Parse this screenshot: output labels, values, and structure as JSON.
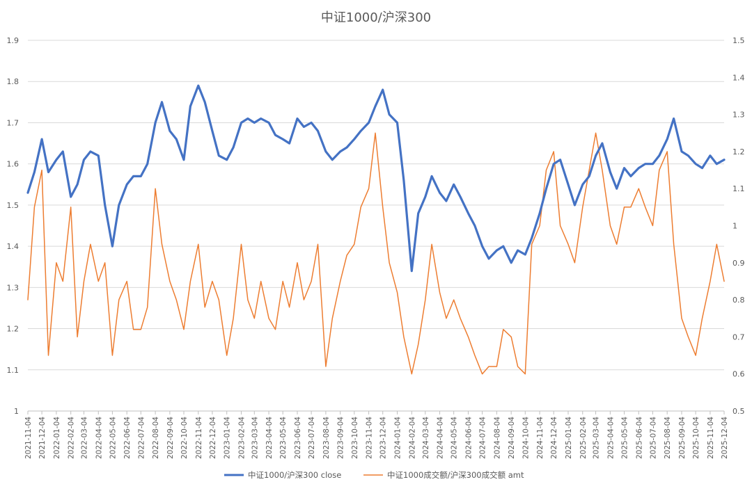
{
  "chart_data": {
    "type": "line",
    "title": "中证1000/沪深300",
    "y_left": {
      "min": 1.0,
      "max": 1.9,
      "ticks": [
        "1",
        "1.1",
        "1.2",
        "1.3",
        "1.4",
        "1.5",
        "1.6",
        "1.7",
        "1.8",
        "1.9"
      ]
    },
    "y_right": {
      "min": 0.5,
      "max": 1.5,
      "ticks": [
        "0.5",
        "0.6",
        "0.7",
        "0.8",
        "0.9",
        "1",
        "1.1",
        "1.2",
        "1.3",
        "1.4",
        "1.5"
      ]
    },
    "x_ticks": [
      "2021-11-04",
      "2021-12-04",
      "2022-01-04",
      "2022-02-04",
      "2022-03-04",
      "2022-04-04",
      "2022-05-04",
      "2022-06-04",
      "2022-07-04",
      "2022-08-04",
      "2022-09-04",
      "2022-10-04",
      "2022-11-04",
      "2022-12-04",
      "2023-01-04",
      "2023-02-04",
      "2023-03-04",
      "2023-04-04",
      "2023-05-04",
      "2023-06-04",
      "2023-07-04",
      "2023-08-04",
      "2023-09-04",
      "2023-10-04",
      "2023-11-04",
      "2023-12-04",
      "2024-01-04",
      "2024-02-04",
      "2024-03-04",
      "2024-04-04",
      "2024-05-04",
      "2024-06-04",
      "2024-07-04",
      "2024-08-04",
      "2024-09-04",
      "2024-10-04",
      "2024-11-04",
      "2024-12-04",
      "2025-01-04",
      "2025-02-04",
      "2025-03-04",
      "2025-04-04",
      "2025-05-04",
      "2025-06-04",
      "2025-07-04",
      "2025-08-04",
      "2025-09-04",
      "2025-10-04",
      "2025-11-04",
      "2025-12-04"
    ],
    "grid": true,
    "legend_position": "bottom",
    "series": [
      {
        "name": "中证1000/沪深300 close",
        "axis": "left",
        "color": "#4472C4",
        "x": [
          "2021-11-04",
          "2021-11-18",
          "2021-12-04",
          "2021-12-18",
          "2022-01-04",
          "2022-01-18",
          "2022-02-04",
          "2022-02-18",
          "2022-03-04",
          "2022-03-18",
          "2022-04-04",
          "2022-04-18",
          "2022-05-04",
          "2022-05-18",
          "2022-06-04",
          "2022-06-18",
          "2022-07-04",
          "2022-07-18",
          "2022-08-04",
          "2022-08-18",
          "2022-09-04",
          "2022-09-18",
          "2022-10-04",
          "2022-10-18",
          "2022-11-04",
          "2022-11-18",
          "2022-12-04",
          "2022-12-18",
          "2023-01-04",
          "2023-01-18",
          "2023-02-04",
          "2023-02-18",
          "2023-03-04",
          "2023-03-18",
          "2023-04-04",
          "2023-04-18",
          "2023-05-04",
          "2023-05-18",
          "2023-06-04",
          "2023-06-18",
          "2023-07-04",
          "2023-07-18",
          "2023-08-04",
          "2023-08-18",
          "2023-09-04",
          "2023-09-18",
          "2023-10-04",
          "2023-10-18",
          "2023-11-04",
          "2023-11-18",
          "2023-12-04",
          "2023-12-18",
          "2024-01-04",
          "2024-01-18",
          "2024-02-04",
          "2024-02-18",
          "2024-03-04",
          "2024-03-18",
          "2024-04-04",
          "2024-04-18",
          "2024-05-04",
          "2024-05-18",
          "2024-06-04",
          "2024-06-18",
          "2024-07-04",
          "2024-07-18",
          "2024-08-04",
          "2024-08-18",
          "2024-09-04",
          "2024-09-18",
          "2024-10-04",
          "2024-10-18",
          "2024-11-04",
          "2024-11-18",
          "2024-12-04",
          "2024-12-18",
          "2025-01-04",
          "2025-01-18",
          "2025-02-04",
          "2025-02-18",
          "2025-03-04",
          "2025-03-18",
          "2025-04-04",
          "2025-04-18",
          "2025-05-04",
          "2025-05-18",
          "2025-06-04",
          "2025-06-18",
          "2025-07-04",
          "2025-07-18",
          "2025-08-04",
          "2025-08-18",
          "2025-09-04",
          "2025-09-18",
          "2025-10-04",
          "2025-10-18",
          "2025-11-04",
          "2025-11-18",
          "2025-12-04"
        ],
        "values": [
          1.53,
          1.58,
          1.66,
          1.58,
          1.61,
          1.63,
          1.52,
          1.55,
          1.61,
          1.63,
          1.62,
          1.5,
          1.4,
          1.5,
          1.55,
          1.57,
          1.57,
          1.6,
          1.7,
          1.75,
          1.68,
          1.66,
          1.61,
          1.74,
          1.79,
          1.75,
          1.68,
          1.62,
          1.61,
          1.64,
          1.7,
          1.71,
          1.7,
          1.71,
          1.7,
          1.67,
          1.66,
          1.65,
          1.71,
          1.69,
          1.7,
          1.68,
          1.63,
          1.61,
          1.63,
          1.64,
          1.66,
          1.68,
          1.7,
          1.74,
          1.78,
          1.72,
          1.7,
          1.56,
          1.34,
          1.48,
          1.52,
          1.57,
          1.53,
          1.51,
          1.55,
          1.52,
          1.48,
          1.45,
          1.4,
          1.37,
          1.39,
          1.4,
          1.36,
          1.39,
          1.38,
          1.42,
          1.48,
          1.54,
          1.6,
          1.61,
          1.55,
          1.5,
          1.55,
          1.57,
          1.62,
          1.65,
          1.58,
          1.54,
          1.59,
          1.57,
          1.59,
          1.6,
          1.6,
          1.62,
          1.66,
          1.71,
          1.63,
          1.62,
          1.6,
          1.59,
          1.62,
          1.6,
          1.61
        ]
      },
      {
        "name": "中证1000成交额/沪深300成交额 amt",
        "axis": "right",
        "color": "#ED7D31",
        "x": [
          "2021-11-04",
          "2021-11-18",
          "2021-12-04",
          "2021-12-18",
          "2022-01-04",
          "2022-01-18",
          "2022-02-04",
          "2022-02-18",
          "2022-03-04",
          "2022-03-18",
          "2022-04-04",
          "2022-04-18",
          "2022-05-04",
          "2022-05-18",
          "2022-06-04",
          "2022-06-18",
          "2022-07-04",
          "2022-07-18",
          "2022-08-04",
          "2022-08-18",
          "2022-09-04",
          "2022-09-18",
          "2022-10-04",
          "2022-10-18",
          "2022-11-04",
          "2022-11-18",
          "2022-12-04",
          "2022-12-18",
          "2023-01-04",
          "2023-01-18",
          "2023-02-04",
          "2023-02-18",
          "2023-03-04",
          "2023-03-18",
          "2023-04-04",
          "2023-04-18",
          "2023-05-04",
          "2023-05-18",
          "2023-06-04",
          "2023-06-18",
          "2023-07-04",
          "2023-07-18",
          "2023-08-04",
          "2023-08-18",
          "2023-09-04",
          "2023-09-18",
          "2023-10-04",
          "2023-10-18",
          "2023-11-04",
          "2023-11-18",
          "2023-12-04",
          "2023-12-18",
          "2024-01-04",
          "2024-01-18",
          "2024-02-04",
          "2024-02-18",
          "2024-03-04",
          "2024-03-18",
          "2024-04-04",
          "2024-04-18",
          "2024-05-04",
          "2024-05-18",
          "2024-06-04",
          "2024-06-18",
          "2024-07-04",
          "2024-07-18",
          "2024-08-04",
          "2024-08-18",
          "2024-09-04",
          "2024-09-18",
          "2024-10-04",
          "2024-10-18",
          "2024-11-04",
          "2024-11-18",
          "2024-12-04",
          "2024-12-18",
          "2025-01-04",
          "2025-01-18",
          "2025-02-04",
          "2025-02-18",
          "2025-03-04",
          "2025-03-18",
          "2025-04-04",
          "2025-04-18",
          "2025-05-04",
          "2025-05-18",
          "2025-06-04",
          "2025-06-18",
          "2025-07-04",
          "2025-07-18",
          "2025-08-04",
          "2025-08-18",
          "2025-09-04",
          "2025-09-18",
          "2025-10-04",
          "2025-10-18",
          "2025-11-04",
          "2025-11-18",
          "2025-12-04"
        ],
        "values": [
          0.8,
          1.05,
          1.15,
          0.65,
          0.9,
          0.85,
          1.05,
          0.7,
          0.85,
          0.95,
          0.85,
          0.9,
          0.65,
          0.8,
          0.85,
          0.72,
          0.72,
          0.78,
          1.1,
          0.95,
          0.85,
          0.8,
          0.72,
          0.85,
          0.95,
          0.78,
          0.85,
          0.8,
          0.65,
          0.75,
          0.95,
          0.8,
          0.75,
          0.85,
          0.75,
          0.72,
          0.85,
          0.78,
          0.9,
          0.8,
          0.85,
          0.95,
          0.62,
          0.75,
          0.85,
          0.92,
          0.95,
          1.05,
          1.1,
          1.25,
          1.05,
          0.9,
          0.82,
          0.7,
          0.6,
          0.68,
          0.8,
          0.95,
          0.82,
          0.75,
          0.8,
          0.75,
          0.7,
          0.65,
          0.6,
          0.62,
          0.62,
          0.72,
          0.7,
          0.62,
          0.6,
          0.95,
          1.0,
          1.15,
          1.2,
          1.0,
          0.95,
          0.9,
          1.05,
          1.15,
          1.25,
          1.15,
          1.0,
          0.95,
          1.05,
          1.05,
          1.1,
          1.05,
          1.0,
          1.15,
          1.2,
          0.95,
          0.75,
          0.7,
          0.65,
          0.75,
          0.85,
          0.95,
          0.85
        ]
      }
    ]
  }
}
